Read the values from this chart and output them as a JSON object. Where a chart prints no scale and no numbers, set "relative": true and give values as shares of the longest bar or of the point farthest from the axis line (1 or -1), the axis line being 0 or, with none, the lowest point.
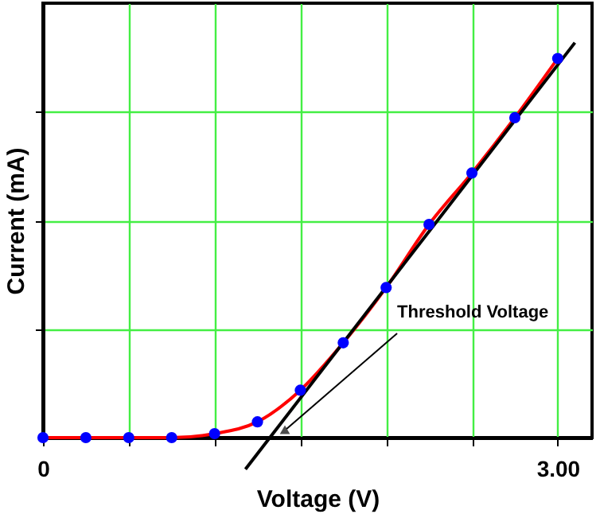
{
  "chart_data": {
    "type": "scatter",
    "xlabel": "Voltage (V)",
    "ylabel": "Current (mA)",
    "relative": true,
    "xlim": [
      0,
      3.2
    ],
    "xticks": [
      0,
      {
        "value": 0.5,
        "label": null
      },
      {
        "value": 1,
        "label": null
      },
      {
        "value": 1.5,
        "label": null
      },
      {
        "value": 2,
        "label": null
      },
      {
        "value": 2.5,
        "label": null
      },
      {
        "value": 3,
        "label": "3.00"
      }
    ],
    "grid": true,
    "annotations": [
      {
        "text": "Threshold Voltage",
        "x": 1.37,
        "y": 0
      }
    ],
    "series": [
      {
        "type": "line",
        "color": "#ff0000",
        "x": [
          0,
          0.25,
          0.5,
          0.75,
          1,
          1.25,
          1.5,
          1.75,
          2,
          2.25,
          2.5,
          2.75,
          3
        ],
        "values": [
          0,
          0,
          0,
          0,
          0.01,
          0.04,
          0.12,
          0.24,
          0.38,
          0.54,
          0.67,
          0.81,
          0.96
        ]
      },
      {
        "type": "line",
        "color": "#000000",
        "x": [
          1.18,
          3.1
        ],
        "values": [
          -0.08,
          1
        ]
      },
      {
        "color": "#0000ff",
        "marker": "circle",
        "x": [
          0,
          0.25,
          0.5,
          0.75,
          1,
          1.25,
          1.5,
          1.75,
          2,
          2.25,
          2.5,
          2.75,
          3
        ],
        "values": [
          0,
          0,
          0,
          0,
          0.01,
          0.04,
          0.12,
          0.24,
          0.38,
          0.54,
          0.67,
          0.81,
          0.96
        ]
      }
    ]
  }
}
